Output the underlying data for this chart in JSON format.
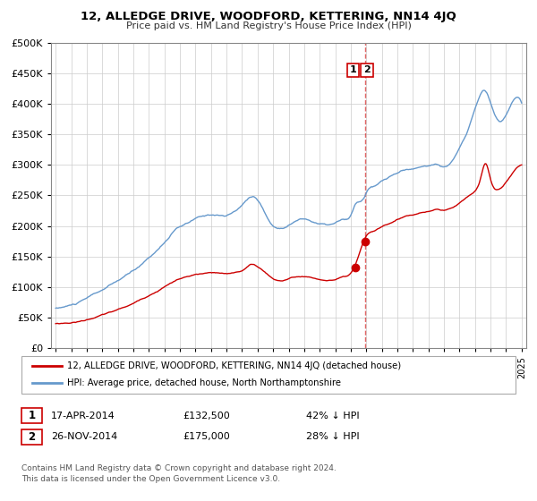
{
  "title": "12, ALLEDGE DRIVE, WOODFORD, KETTERING, NN14 4JQ",
  "subtitle": "Price paid vs. HM Land Registry's House Price Index (HPI)",
  "legend_line1": "12, ALLEDGE DRIVE, WOODFORD, KETTERING, NN14 4JQ (detached house)",
  "legend_line2": "HPI: Average price, detached house, North Northamptonshire",
  "annotation1_date": "17-APR-2014",
  "annotation1_price": "£132,500",
  "annotation1_hpi": "42% ↓ HPI",
  "annotation2_date": "26-NOV-2014",
  "annotation2_price": "£175,000",
  "annotation2_hpi": "28% ↓ HPI",
  "footer": "Contains HM Land Registry data © Crown copyright and database right 2024.\nThis data is licensed under the Open Government Licence v3.0.",
  "red_color": "#cc0000",
  "blue_color": "#6699cc",
  "point1_x": 2014.29,
  "point1_y": 132500,
  "point2_x": 2014.9,
  "point2_y": 175000,
  "ylim": [
    0,
    500000
  ],
  "xlim": [
    1994.7,
    2025.3
  ]
}
